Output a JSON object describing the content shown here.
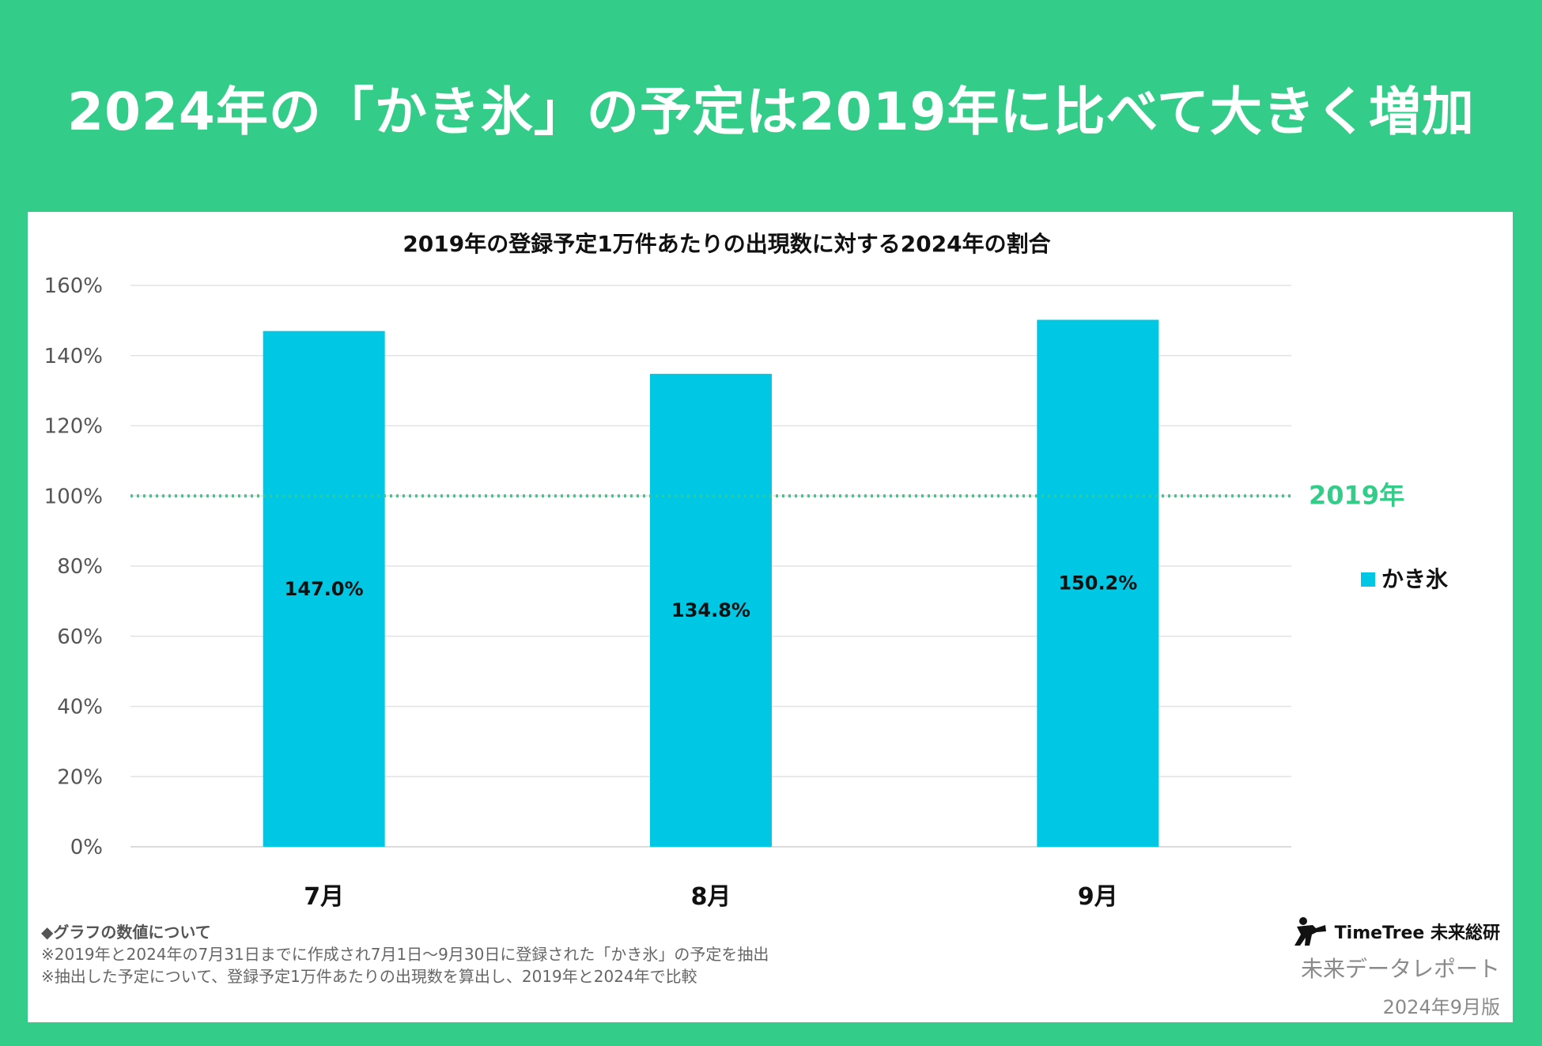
{
  "headline": "2024年の「かき氷」の予定は2019年に比べて大きく増加",
  "chart_data": {
    "type": "bar",
    "title": "2019年の登録予定1万件あたりの出現数に対する2024年の割合",
    "categories": [
      "7月",
      "8月",
      "9月"
    ],
    "series": [
      {
        "name": "かき氷",
        "values": [
          147.0,
          134.8,
          150.2
        ],
        "color": "#00C8E4"
      }
    ],
    "value_labels": [
      "147.0%",
      "134.8%",
      "150.2%"
    ],
    "ylim": [
      0,
      160
    ],
    "yticks": [
      0,
      20,
      40,
      60,
      80,
      100,
      120,
      140,
      160
    ],
    "ytick_labels": [
      "0%",
      "20%",
      "40%",
      "60%",
      "80%",
      "100%",
      "120%",
      "140%",
      "160%"
    ],
    "xlabel": "",
    "ylabel": "",
    "grid": true,
    "legend_position": "right",
    "reference_line": {
      "value": 100,
      "label": "2019年",
      "color": "#33CC88",
      "style": "dotted"
    }
  },
  "notes": {
    "heading": "◆グラフの数値について",
    "lines": [
      "※2019年と2024年の7月31日までに作成され7月1日〜9月30日に登録された「かき氷」の予定を抽出",
      "※抽出した予定について、登録予定1万件あたりの出現数を算出し、2019年と2024年で比較"
    ]
  },
  "brand": {
    "logo_text": "TimeTree 未来総研",
    "report": "未来データレポート",
    "edition": "2024年9月版"
  }
}
